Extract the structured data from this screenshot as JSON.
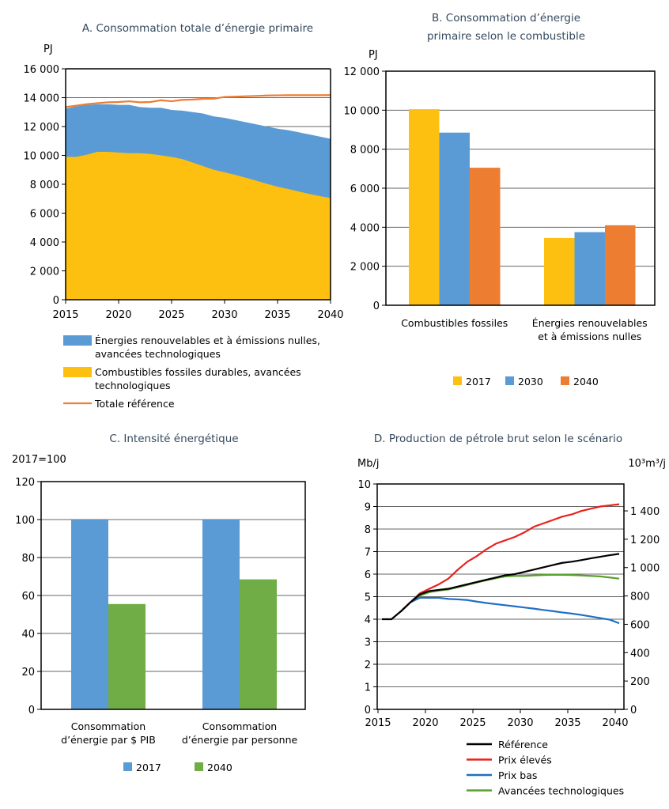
{
  "colors": {
    "yellow": "#FDC010",
    "blue": "#5B9BD5",
    "orange": "#ED7D31",
    "green": "#70AD47",
    "ref_black": "#000000",
    "high_red": "#E8221C",
    "low_blue": "#1F6FC5",
    "tech_green": "#5AA02C",
    "title": "#34495e"
  },
  "chart_data": [
    {
      "id": "A",
      "type": "area",
      "title": "A. Consommation totale d’énergie primaire",
      "ylabel": "PJ",
      "ylim": [
        0,
        16000
      ],
      "yticks": [
        0,
        2000,
        4000,
        6000,
        8000,
        10000,
        12000,
        14000,
        16000
      ],
      "ytick_labels": [
        "0",
        "2 000",
        "4 000",
        "6 000",
        "8 000",
        "10 000",
        "12 000",
        "14 000",
        "16 000"
      ],
      "xlim": [
        2015,
        2040
      ],
      "xticks": [
        2015,
        2020,
        2025,
        2030,
        2035,
        2040
      ],
      "grid": true,
      "legend_position": "bottom",
      "x": [
        2015,
        2016,
        2017,
        2018,
        2019,
        2020,
        2021,
        2022,
        2023,
        2024,
        2025,
        2026,
        2027,
        2028,
        2029,
        2030,
        2031,
        2032,
        2033,
        2034,
        2035,
        2036,
        2037,
        2038,
        2039,
        2040
      ],
      "series": [
        {
          "name": "Combustibles fossiles durables, avancées technologiques",
          "kind": "area",
          "color": "#FDC010",
          "values": [
            9900,
            9900,
            10050,
            10250,
            10250,
            10200,
            10150,
            10150,
            10100,
            10000,
            9900,
            9750,
            9500,
            9250,
            9000,
            8830,
            8650,
            8450,
            8250,
            8030,
            7830,
            7670,
            7500,
            7330,
            7180,
            7050
          ]
        },
        {
          "name": "Énergies renouvelables et à émissions nulles, avancées technologiques",
          "kind": "area-stacked-top",
          "color": "#5B9BD5",
          "values": [
            3350,
            3500,
            3450,
            3300,
            3300,
            3300,
            3350,
            3200,
            3200,
            3300,
            3250,
            3350,
            3500,
            3650,
            3700,
            3770,
            3800,
            3850,
            3900,
            3970,
            4020,
            4080,
            4100,
            4120,
            4120,
            4100
          ]
        },
        {
          "name": "Totale référence",
          "kind": "line",
          "color": "#ED7D31",
          "values": [
            13350,
            13450,
            13550,
            13620,
            13680,
            13700,
            13750,
            13680,
            13700,
            13820,
            13750,
            13850,
            13870,
            13920,
            13930,
            14050,
            14070,
            14100,
            14120,
            14150,
            14160,
            14170,
            14170,
            14170,
            14170,
            14180
          ]
        }
      ],
      "legend": [
        {
          "lines": [
            "Énergies renouvelables et à émissions nulles,",
            "avancées technologiques"
          ],
          "color": "#5B9BD5",
          "kind": "area"
        },
        {
          "lines": [
            "Combustibles fossiles durables, avancées",
            "technologiques"
          ],
          "color": "#FDC010",
          "kind": "area"
        },
        {
          "lines": [
            "Totale référence"
          ],
          "color": "#ED7D31",
          "kind": "line"
        }
      ]
    },
    {
      "id": "B",
      "type": "bar",
      "title_lines": [
        "B. Consommation d’énergie",
        "primaire selon le combustible"
      ],
      "ylabel": "PJ",
      "ylim": [
        0,
        12000
      ],
      "yticks": [
        0,
        2000,
        4000,
        6000,
        8000,
        10000,
        12000
      ],
      "ytick_labels": [
        "0",
        "2 000",
        "4 000",
        "6 000",
        "8 000",
        "10 000",
        "12 000"
      ],
      "categories": [
        [
          "Combustibles fossiles"
        ],
        [
          "Énergies renouvelables",
          "et à émissions nulles"
        ]
      ],
      "grid": true,
      "legend_position": "bottom",
      "series": [
        {
          "name": "2017",
          "color": "#FDC010",
          "values": [
            10050,
            3450
          ]
        },
        {
          "name": "2030",
          "color": "#5B9BD5",
          "values": [
            8850,
            3750
          ]
        },
        {
          "name": "2040",
          "color": "#ED7D31",
          "values": [
            7050,
            4100
          ]
        }
      ]
    },
    {
      "id": "C",
      "type": "bar",
      "title": "C. Intensité énergétique",
      "ylabel": "2017=100",
      "ylim": [
        0,
        120
      ],
      "yticks": [
        0,
        20,
        40,
        60,
        80,
        100,
        120
      ],
      "ytick_labels": [
        "0",
        "20",
        "40",
        "60",
        "80",
        "100",
        "120"
      ],
      "categories": [
        [
          "Consommation",
          "d’énergie par $ PIB"
        ],
        [
          "Consommation",
          "d’énergie par personne"
        ]
      ],
      "grid": true,
      "legend_position": "bottom",
      "series": [
        {
          "name": "2017",
          "color": "#5B9BD5",
          "values": [
            100,
            100
          ]
        },
        {
          "name": "2040",
          "color": "#70AD47",
          "values": [
            55.5,
            68.5
          ]
        }
      ]
    },
    {
      "id": "D",
      "type": "line",
      "title": "D. Production de pétrole brut selon le scénario",
      "ylabel": "Mb/j",
      "ylabel_right": "10³m³/j",
      "ylim": [
        0,
        10
      ],
      "yticks": [
        0,
        1,
        2,
        3,
        4,
        5,
        6,
        7,
        8,
        9,
        10
      ],
      "ytick_labels": [
        "0",
        "1",
        "2",
        "3",
        "4",
        "5",
        "6",
        "7",
        "8",
        "9",
        "10"
      ],
      "yticks_right": [
        0,
        200,
        400,
        600,
        800,
        1000,
        1200,
        1400
      ],
      "ytick_right_labels": [
        "0",
        "200",
        "400",
        "600",
        "800",
        "1 000",
        "1 200",
        "1 400"
      ],
      "xticks": [
        2015,
        2020,
        2025,
        2030,
        2035,
        2040
      ],
      "grid": true,
      "legend_position": "bottom",
      "x": [
        2015,
        2016,
        2017,
        2018,
        2019,
        2020,
        2021,
        2022,
        2023,
        2024,
        2025,
        2026,
        2027,
        2028,
        2029,
        2030,
        2031,
        2032,
        2033,
        2034,
        2035,
        2036,
        2037,
        2038,
        2039,
        2040
      ],
      "series": [
        {
          "name": "Référence",
          "color": "#000000",
          "values": [
            4.0,
            4.0,
            4.35,
            4.75,
            5.1,
            5.25,
            5.3,
            5.35,
            5.45,
            5.55,
            5.65,
            5.75,
            5.85,
            5.95,
            6.0,
            6.1,
            6.2,
            6.3,
            6.4,
            6.5,
            6.55,
            6.62,
            6.7,
            6.77,
            6.84,
            6.9
          ]
        },
        {
          "name": "Prix élevés",
          "color": "#E8221C",
          "values": [
            null,
            null,
            4.35,
            4.75,
            5.15,
            5.35,
            5.55,
            5.8,
            6.2,
            6.55,
            6.8,
            7.1,
            7.35,
            7.5,
            7.65,
            7.85,
            8.1,
            8.25,
            8.4,
            8.55,
            8.65,
            8.8,
            8.9,
            9.0,
            9.05,
            9.1
          ]
        },
        {
          "name": "Prix bas",
          "color": "#1F6FC5",
          "values": [
            null,
            null,
            4.35,
            4.75,
            4.95,
            4.95,
            4.95,
            4.9,
            4.88,
            4.85,
            4.78,
            4.72,
            4.67,
            4.62,
            4.57,
            4.52,
            4.47,
            4.41,
            4.36,
            4.3,
            4.25,
            4.19,
            4.12,
            4.05,
            3.98,
            3.82
          ]
        },
        {
          "name": "Avancées technologiques",
          "color": "#5AA02C",
          "values": [
            null,
            null,
            4.35,
            4.75,
            5.05,
            5.2,
            5.27,
            5.32,
            5.42,
            5.52,
            5.63,
            5.73,
            5.82,
            5.9,
            5.92,
            5.92,
            5.94,
            5.96,
            5.97,
            5.97,
            5.96,
            5.94,
            5.92,
            5.9,
            5.85,
            5.8
          ]
        }
      ]
    }
  ]
}
